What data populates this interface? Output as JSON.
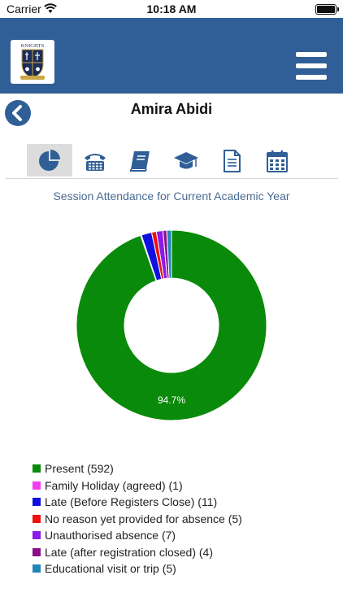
{
  "status_bar": {
    "carrier": "Carrier",
    "time": "10:18 AM"
  },
  "header": {
    "logo_text": "KNIGHTS"
  },
  "page": {
    "title": "Amira Abidi"
  },
  "tabs": [
    {
      "icon": "pie-chart-icon",
      "active": true
    },
    {
      "icon": "phone-icon",
      "active": false
    },
    {
      "icon": "book-icon",
      "active": false
    },
    {
      "icon": "graduation-cap-icon",
      "active": false
    },
    {
      "icon": "document-icon",
      "active": false
    },
    {
      "icon": "calendar-icon",
      "active": false
    }
  ],
  "section": {
    "subtitle": "Session Attendance for Current Academic Year"
  },
  "colors": {
    "brand": "#2f5f96",
    "subtitle": "#4a6a92"
  },
  "chart_data": {
    "type": "pie",
    "donut": true,
    "center_label": "94.7%",
    "slices": [
      {
        "label": "Present (592)",
        "value": 592,
        "color": "#0a8a0a"
      },
      {
        "label": "Family Holiday (agreed) (1)",
        "value": 1,
        "color": "#f23cf0"
      },
      {
        "label": "Late (Before Registers Close) (11)",
        "value": 11,
        "color": "#1010e0"
      },
      {
        "label": "No reason yet provided for absence (5)",
        "value": 5,
        "color": "#ee1111"
      },
      {
        "label": "Unauthorised absence (7)",
        "value": 7,
        "color": "#8a1be8"
      },
      {
        "label": "Late (after registration closed) (4)",
        "value": 4,
        "color": "#8a0f8a"
      },
      {
        "label": "Educational visit or trip (5)",
        "value": 5,
        "color": "#1f86b8"
      }
    ]
  }
}
